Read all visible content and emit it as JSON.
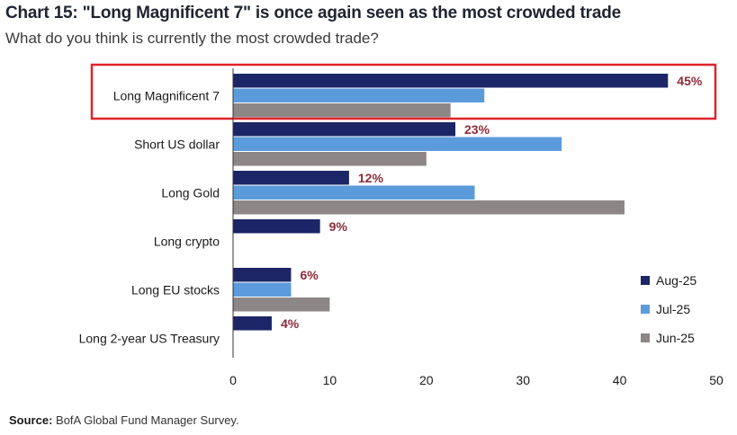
{
  "title": "Chart 15: \"Long Magnificent 7\" is once again seen as the most crowded trade",
  "subtitle": "What do you think is currently the most crowded trade?",
  "source_label": "Source:",
  "source_text": "BofA Global Fund Manager Survey.",
  "chart_data": {
    "type": "bar",
    "orientation": "horizontal",
    "categories": [
      "Long Magnificent 7",
      "Short US dollar",
      "Long Gold",
      "Long crypto",
      "Long EU stocks",
      "Long 2-year US Treasury"
    ],
    "series": [
      {
        "name": "Aug-25",
        "color": "#1c2566",
        "values": [
          45,
          23,
          12,
          9,
          6,
          4
        ]
      },
      {
        "name": "Jul-25",
        "color": "#5b9bdb",
        "values": [
          26,
          34,
          25,
          null,
          6,
          null
        ]
      },
      {
        "name": "Jun-25",
        "color": "#8c8687",
        "values": [
          22.5,
          20,
          40.5,
          null,
          10,
          null
        ]
      }
    ],
    "data_labels": [
      "45%",
      "23%",
      "12%",
      "9%",
      "6%",
      "4%"
    ],
    "data_label_color": "#8b2c3a",
    "highlight_color": "#e0232e",
    "highlight_category": "Long Magnificent 7",
    "x_ticks": [
      "0",
      "10",
      "20",
      "30",
      "40",
      "50"
    ],
    "xlim": [
      0,
      50
    ],
    "grid": false,
    "legend_position": "bottom-right"
  }
}
